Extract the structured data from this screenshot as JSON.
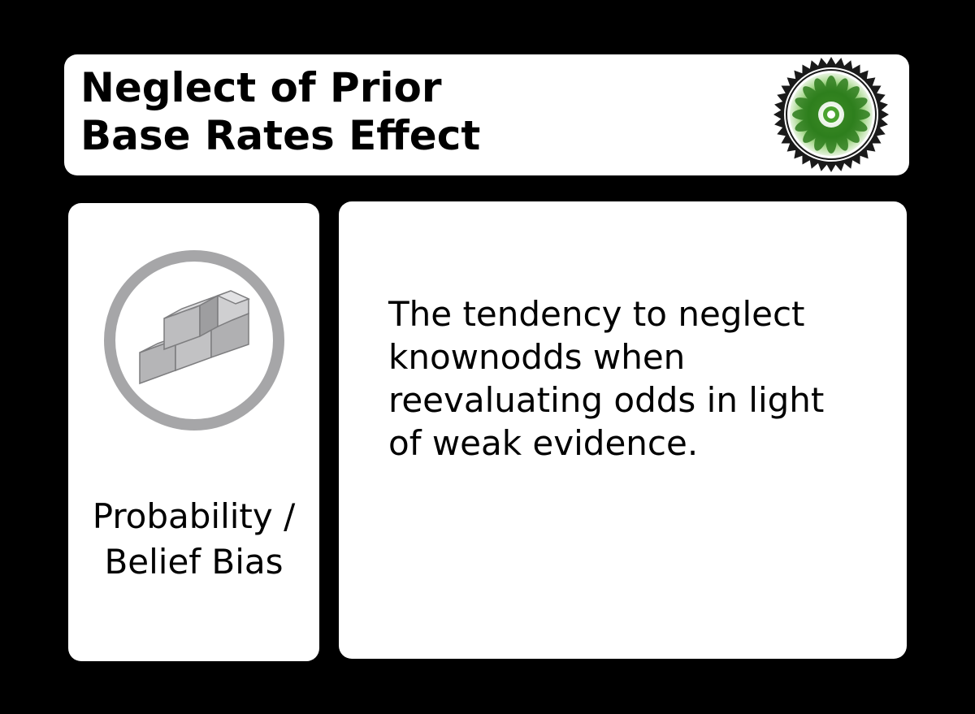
{
  "card": {
    "title_lines": [
      "Neglect of Prior",
      "Base Rates Effect"
    ],
    "category_lines": [
      "Probability /",
      "Belief Bias"
    ],
    "description_lines": [
      "The tendency to neglect",
      "knownodds when",
      "reevaluating odds in light",
      "of weak evidence."
    ],
    "icons": {
      "seal": "green-leaf-seal-icon",
      "category": "brick-wall-circle-icon"
    },
    "colors": {
      "background": "#000000",
      "panel": "#ffffff",
      "text": "#000000",
      "icon_gray": "#a6a6a8",
      "seal_green": "#3f9a2a"
    }
  }
}
